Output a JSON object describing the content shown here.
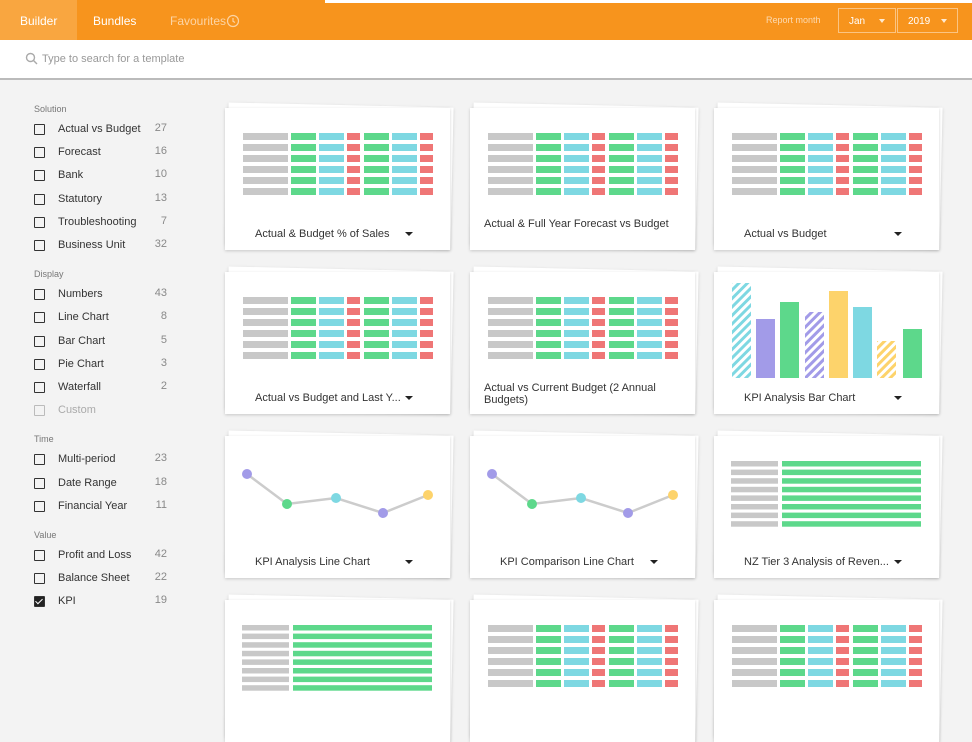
{
  "header": {
    "tabs": [
      {
        "label": "Builder",
        "active": true
      },
      {
        "label": "Bundles",
        "active": false
      },
      {
        "label": "Favourites",
        "active": false,
        "muted": true
      }
    ],
    "report_month_label": "Report month",
    "month": "Jan",
    "year": "2019"
  },
  "search": {
    "placeholder": "Type to search for a template"
  },
  "filters": [
    {
      "title": "Solution",
      "items": [
        {
          "label": "Actual vs Budget",
          "count": 27,
          "checked": false
        },
        {
          "label": "Forecast",
          "count": 16,
          "checked": false
        },
        {
          "label": "Bank",
          "count": 10,
          "checked": false
        },
        {
          "label": "Statutory",
          "count": 13,
          "checked": false
        },
        {
          "label": "Troubleshooting",
          "count": 7,
          "checked": false
        },
        {
          "label": "Business Unit",
          "count": 32,
          "checked": false
        }
      ]
    },
    {
      "title": "Display",
      "items": [
        {
          "label": "Numbers",
          "count": 43,
          "checked": false
        },
        {
          "label": "Line Chart",
          "count": 8,
          "checked": false
        },
        {
          "label": "Bar Chart",
          "count": 5,
          "checked": false
        },
        {
          "label": "Pie Chart",
          "count": 3,
          "checked": false
        },
        {
          "label": "Waterfall",
          "count": 2,
          "checked": false
        },
        {
          "label": "Custom",
          "checked": false,
          "disabled": true
        }
      ]
    },
    {
      "title": "Time",
      "items": [
        {
          "label": "Multi-period",
          "count": 23,
          "checked": false
        },
        {
          "label": "Date Range",
          "count": 18,
          "checked": false
        },
        {
          "label": "Financial Year",
          "count": 11,
          "checked": false
        }
      ]
    },
    {
      "title": "Value",
      "items": [
        {
          "label": "Profit and Loss",
          "count": 42,
          "checked": false
        },
        {
          "label": "Balance Sheet",
          "count": 22,
          "checked": false
        },
        {
          "label": "KPI",
          "count": 19,
          "checked": true
        }
      ]
    }
  ],
  "templates": [
    {
      "title": "Actual & Budget % of Sales",
      "thumbnail": "table",
      "dropdown": true
    },
    {
      "title": "Actual & Full Year Forecast vs Budget",
      "thumbnail": "table",
      "dropdown": false
    },
    {
      "title": "Actual vs Budget",
      "thumbnail": "table",
      "dropdown": true
    },
    {
      "title": "Actual vs Budget and Last Y...",
      "thumbnail": "table",
      "dropdown": true
    },
    {
      "title": "Actual vs Current Budget (2 Annual Budgets)",
      "thumbnail": "table",
      "dropdown": false
    },
    {
      "title": "KPI Analysis Bar Chart",
      "thumbnail": "bar",
      "dropdown": true
    },
    {
      "title": "KPI Analysis Line Chart",
      "thumbnail": "line",
      "dropdown": true
    },
    {
      "title": "KPI Comparison Line Chart",
      "thumbnail": "line",
      "dropdown": true
    },
    {
      "title": "NZ Tier 3 Analysis of Reven...",
      "thumbnail": "list",
      "dropdown": true
    },
    {
      "thumbnail": "list"
    },
    {
      "thumbnail": "table"
    },
    {
      "thumbnail": "table"
    }
  ]
}
